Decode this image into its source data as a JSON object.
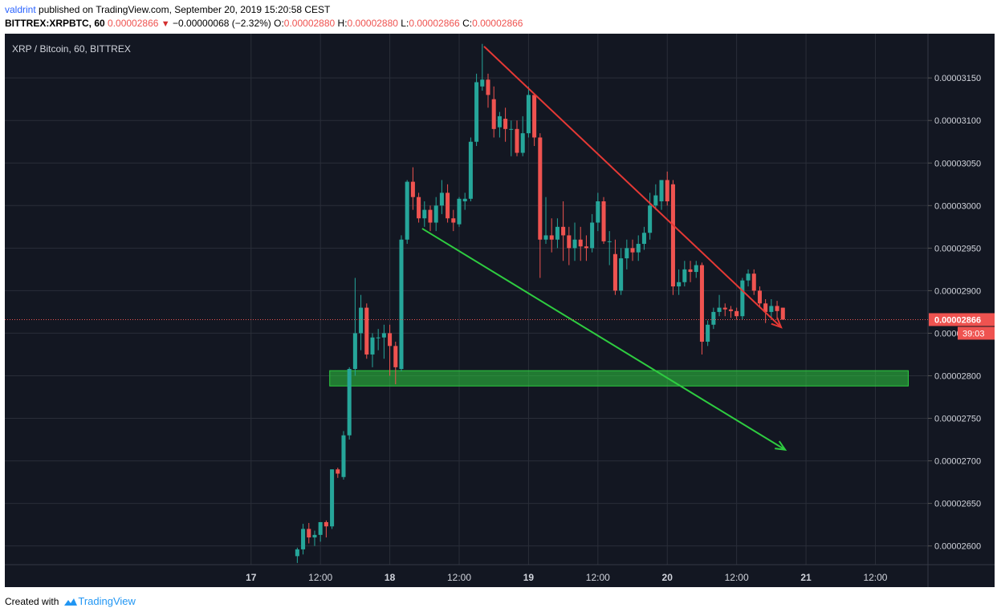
{
  "header": {
    "author": "valdrint",
    "published_text": "published on TradingView.com, September 20, 2019 15:20:58 CEST",
    "symbol": "BITTREX:XRPBTC, 60",
    "last_price": "0.00002866",
    "change": "−0.00000068 (−2.32%)",
    "o_label": "O:",
    "o_value": "0.00002880",
    "h_label": "H:",
    "h_value": "0.00002880",
    "l_label": "L:",
    "l_value": "0.00002866",
    "c_label": "C:",
    "c_value": "0.00002866"
  },
  "footer": {
    "created_with": "Created with",
    "logo_text": "TradingView"
  },
  "colors": {
    "up": "#26a69a",
    "down": "#ef5350",
    "background": "#131722",
    "grid": "#2a2e39",
    "text": "#d1d4dc",
    "resistance": "#e53935",
    "support": "#2ecc40"
  },
  "chart_data": {
    "type": "candlestick",
    "title": "XRP / Bitcoin, 60, BITTREX",
    "ylim": [
      2.578e-05,
      3.202e-05
    ],
    "xlim": [
      -42.6,
      117.1
    ],
    "x_unit": "hours since 2019-09-17 00:00",
    "yticks": [
      "0.00003150",
      "0.00003100",
      "0.00003050",
      "0.00003000",
      "0.00002950",
      "0.00002900",
      "0.00002850",
      "0.00002800",
      "0.00002750",
      "0.00002700",
      "0.00002650",
      "0.00002600"
    ],
    "xticks": [
      {
        "t": 0,
        "label": "17"
      },
      {
        "t": 12,
        "label": "12:00"
      },
      {
        "t": 24,
        "label": "18"
      },
      {
        "t": 36,
        "label": "12:00"
      },
      {
        "t": 48,
        "label": "19"
      },
      {
        "t": 60,
        "label": "12:00"
      },
      {
        "t": 72,
        "label": "20"
      },
      {
        "t": 84,
        "label": "12:00"
      },
      {
        "t": 96,
        "label": "21"
      },
      {
        "t": 108,
        "label": "12:00"
      }
    ],
    "candles": [
      {
        "t": 8,
        "o": 2.588e-05,
        "h": 2.598e-05,
        "l": 2.58e-05,
        "c": 2.596e-05
      },
      {
        "t": 9,
        "o": 2.596e-05,
        "h": 2.626e-05,
        "l": 2.59e-05,
        "c": 2.62e-05
      },
      {
        "t": 10,
        "o": 2.62e-05,
        "h": 2.627e-05,
        "l": 2.603e-05,
        "c": 2.61e-05
      },
      {
        "t": 11,
        "o": 2.61e-05,
        "h": 2.618e-05,
        "l": 2.6e-05,
        "c": 2.613e-05
      },
      {
        "t": 12,
        "o": 2.613e-05,
        "h": 2.627e-05,
        "l": 2.605e-05,
        "c": 2.628e-05
      },
      {
        "t": 13,
        "o": 2.628e-05,
        "h": 2.63e-05,
        "l": 2.61e-05,
        "c": 2.623e-05
      },
      {
        "t": 14,
        "o": 2.623e-05,
        "h": 2.69e-05,
        "l": 2.62e-05,
        "c": 2.69e-05
      },
      {
        "t": 15,
        "o": 2.69e-05,
        "h": 2.692e-05,
        "l": 2.68e-05,
        "c": 2.685e-05
      },
      {
        "t": 16,
        "o": 2.681e-05,
        "h": 2.735e-05,
        "l": 2.678e-05,
        "c": 2.73e-05
      },
      {
        "t": 17,
        "o": 2.73e-05,
        "h": 2.81e-05,
        "l": 2.725e-05,
        "c": 2.808e-05
      },
      {
        "t": 18,
        "o": 2.808e-05,
        "h": 2.915e-05,
        "l": 2.8e-05,
        "c": 2.85e-05
      },
      {
        "t": 19,
        "o": 2.85e-05,
        "h": 2.895e-05,
        "l": 2.83e-05,
        "c": 2.88e-05
      },
      {
        "t": 20,
        "o": 2.88e-05,
        "h": 2.885e-05,
        "l": 2.82e-05,
        "c": 2.825e-05
      },
      {
        "t": 21,
        "o": 2.825e-05,
        "h": 2.85e-05,
        "l": 2.81e-05,
        "c": 2.845e-05
      },
      {
        "t": 22,
        "o": 2.845e-05,
        "h": 2.855e-05,
        "l": 2.83e-05,
        "c": 2.845e-05
      },
      {
        "t": 23,
        "o": 2.845e-05,
        "h": 2.86e-05,
        "l": 2.82e-05,
        "c": 2.85e-05
      },
      {
        "t": 24,
        "o": 2.85e-05,
        "h": 2.86e-05,
        "l": 2.8e-05,
        "c": 2.835e-05
      },
      {
        "t": 25,
        "o": 2.835e-05,
        "h": 2.84e-05,
        "l": 2.79e-05,
        "c": 2.81e-05
      },
      {
        "t": 26,
        "o": 2.808e-05,
        "h": 2.965e-05,
        "l": 2.805e-05,
        "c": 2.96e-05
      },
      {
        "t": 27,
        "o": 2.96e-05,
        "h": 3.03e-05,
        "l": 2.955e-05,
        "c": 3.028e-05
      },
      {
        "t": 28,
        "o": 3.028e-05,
        "h": 3.045e-05,
        "l": 2.995e-05,
        "c": 3.01e-05
      },
      {
        "t": 29,
        "o": 3.01e-05,
        "h": 3.015e-05,
        "l": 2.98e-05,
        "c": 2.985e-05
      },
      {
        "t": 30,
        "o": 2.985e-05,
        "h": 3.005e-05,
        "l": 2.975e-05,
        "c": 2.995e-05
      },
      {
        "t": 31,
        "o": 2.995e-05,
        "h": 3e-05,
        "l": 2.97e-05,
        "c": 2.98e-05
      },
      {
        "t": 32,
        "o": 2.98e-05,
        "h": 3.01e-05,
        "l": 2.97e-05,
        "c": 3e-05
      },
      {
        "t": 33,
        "o": 3e-05,
        "h": 3.03e-05,
        "l": 2.99e-05,
        "c": 3.015e-05
      },
      {
        "t": 34,
        "o": 3.015e-05,
        "h": 3.025e-05,
        "l": 2.98e-05,
        "c": 2.985e-05
      },
      {
        "t": 35,
        "o": 2.985e-05,
        "h": 2.995e-05,
        "l": 2.97e-05,
        "c": 2.98e-05
      },
      {
        "t": 36,
        "o": 2.978e-05,
        "h": 3.01e-05,
        "l": 2.975e-05,
        "c": 3.008e-05
      },
      {
        "t": 37,
        "o": 3.005e-05,
        "h": 3.015e-05,
        "l": 2.995e-05,
        "c": 3.008e-05
      },
      {
        "t": 38,
        "o": 3.008e-05,
        "h": 3.08e-05,
        "l": 3.005e-05,
        "c": 3.075e-05
      },
      {
        "t": 39,
        "o": 3.075e-05,
        "h": 3.155e-05,
        "l": 3.07e-05,
        "c": 3.145e-05
      },
      {
        "t": 40,
        "o": 3.14e-05,
        "h": 3.19e-05,
        "l": 3.135e-05,
        "c": 3.148e-05
      },
      {
        "t": 41,
        "o": 3.148e-05,
        "h": 3.155e-05,
        "l": 3.115e-05,
        "c": 3.13e-05
      },
      {
        "t": 42,
        "o": 3.125e-05,
        "h": 3.14e-05,
        "l": 3.08e-05,
        "c": 3.09e-05
      },
      {
        "t": 43,
        "o": 3.092e-05,
        "h": 3.11e-05,
        "l": 3.08e-05,
        "c": 3.105e-05
      },
      {
        "t": 44,
        "o": 3.102e-05,
        "h": 3.115e-05,
        "l": 3.075e-05,
        "c": 3.09e-05
      },
      {
        "t": 45,
        "o": 3.09e-05,
        "h": 3.1e-05,
        "l": 3.058e-05,
        "c": 3.09e-05
      },
      {
        "t": 46,
        "o": 3.09e-05,
        "h": 3.1e-05,
        "l": 3.058e-05,
        "c": 3.062e-05
      },
      {
        "t": 47,
        "o": 3.062e-05,
        "h": 3.105e-05,
        "l": 3.058e-05,
        "c": 3.085e-05
      },
      {
        "t": 48,
        "o": 3.085e-05,
        "h": 3.14e-05,
        "l": 3.08e-05,
        "c": 3.13e-05
      },
      {
        "t": 49,
        "o": 3.13e-05,
        "h": 3.13e-05,
        "l": 3.07e-05,
        "c": 3.08e-05
      },
      {
        "t": 50,
        "o": 3.08e-05,
        "h": 3.085e-05,
        "l": 2.915e-05,
        "c": 2.96e-05
      },
      {
        "t": 51,
        "o": 2.96e-05,
        "h": 3.01e-05,
        "l": 2.955e-05,
        "c": 2.965e-05
      },
      {
        "t": 52,
        "o": 2.965e-05,
        "h": 2.985e-05,
        "l": 2.945e-05,
        "c": 2.96e-05
      },
      {
        "t": 53,
        "o": 2.96e-05,
        "h": 2.985e-05,
        "l": 2.95e-05,
        "c": 2.975e-05
      },
      {
        "t": 54,
        "o": 2.975e-05,
        "h": 3.005e-05,
        "l": 2.935e-05,
        "c": 2.965e-05
      },
      {
        "t": 55,
        "o": 2.965e-05,
        "h": 2.975e-05,
        "l": 2.93e-05,
        "c": 2.95e-05
      },
      {
        "t": 56,
        "o": 2.95e-05,
        "h": 2.98e-05,
        "l": 2.935e-05,
        "c": 2.96e-05
      },
      {
        "t": 57,
        "o": 2.96e-05,
        "h": 2.975e-05,
        "l": 2.935e-05,
        "c": 2.952e-05
      },
      {
        "t": 58,
        "o": 2.952e-05,
        "h": 2.965e-05,
        "l": 2.935e-05,
        "c": 2.95e-05
      },
      {
        "t": 59,
        "o": 2.95e-05,
        "h": 2.99e-05,
        "l": 2.945e-05,
        "c": 2.98e-05
      },
      {
        "t": 60,
        "o": 2.98e-05,
        "h": 3.015e-05,
        "l": 2.97e-05,
        "c": 3.005e-05
      },
      {
        "t": 61,
        "o": 3.005e-05,
        "h": 3.01e-05,
        "l": 2.955e-05,
        "c": 2.958e-05
      },
      {
        "t": 62,
        "o": 2.958e-05,
        "h": 2.97e-05,
        "l": 2.93e-05,
        "c": 2.958e-05
      },
      {
        "t": 63,
        "o": 2.943e-05,
        "h": 2.96e-05,
        "l": 2.895e-05,
        "c": 2.9e-05
      },
      {
        "t": 64,
        "o": 2.9e-05,
        "h": 2.95e-05,
        "l": 2.895e-05,
        "c": 2.938e-05
      },
      {
        "t": 65,
        "o": 2.938e-05,
        "h": 2.96e-05,
        "l": 2.925e-05,
        "c": 2.95e-05
      },
      {
        "t": 66,
        "o": 2.95e-05,
        "h": 2.96e-05,
        "l": 2.935e-05,
        "c": 2.945e-05
      },
      {
        "t": 67,
        "o": 2.945e-05,
        "h": 2.965e-05,
        "l": 2.935e-05,
        "c": 2.955e-05
      },
      {
        "t": 68,
        "o": 2.955e-05,
        "h": 2.975e-05,
        "l": 2.948e-05,
        "c": 2.968e-05
      },
      {
        "t": 69,
        "o": 2.968e-05,
        "h": 3.015e-05,
        "l": 2.96e-05,
        "c": 3e-05
      },
      {
        "t": 70,
        "o": 3e-05,
        "h": 3.025e-05,
        "l": 2.995e-05,
        "c": 3.012e-05
      },
      {
        "t": 71,
        "o": 3.005e-05,
        "h": 3.03e-05,
        "l": 2.995e-05,
        "c": 3.03e-05
      },
      {
        "t": 72,
        "o": 3.03e-05,
        "h": 3.04e-05,
        "l": 3e-05,
        "c": 3.005e-05
      },
      {
        "t": 73,
        "o": 3.025e-05,
        "h": 3.03e-05,
        "l": 2.895e-05,
        "c": 2.905e-05
      },
      {
        "t": 74,
        "o": 2.905e-05,
        "h": 2.925e-05,
        "l": 2.895e-05,
        "c": 2.91e-05
      },
      {
        "t": 75,
        "o": 2.91e-05,
        "h": 2.935e-05,
        "l": 2.905e-05,
        "c": 2.925e-05
      },
      {
        "t": 76,
        "o": 2.925e-05,
        "h": 2.935e-05,
        "l": 2.91e-05,
        "c": 2.922e-05
      },
      {
        "t": 77,
        "o": 2.922e-05,
        "h": 2.935e-05,
        "l": 2.915e-05,
        "c": 2.93e-05
      },
      {
        "t": 78,
        "o": 2.93e-05,
        "h": 2.933e-05,
        "l": 2.825e-05,
        "c": 2.84e-05
      },
      {
        "t": 79,
        "o": 2.84e-05,
        "h": 2.865e-05,
        "l": 2.835e-05,
        "c": 2.86e-05
      },
      {
        "t": 80,
        "o": 2.86e-05,
        "h": 2.88e-05,
        "l": 2.855e-05,
        "c": 2.875e-05
      },
      {
        "t": 81,
        "o": 2.875e-05,
        "h": 2.895e-05,
        "l": 2.87e-05,
        "c": 2.88e-05
      },
      {
        "t": 82,
        "o": 2.88e-05,
        "h": 2.885e-05,
        "l": 2.87e-05,
        "c": 2.878e-05
      },
      {
        "t": 83,
        "o": 2.878e-05,
        "h": 2.882e-05,
        "l": 2.868e-05,
        "c": 2.876e-05
      },
      {
        "t": 84,
        "o": 2.876e-05,
        "h": 2.88e-05,
        "l": 2.866e-05,
        "c": 2.87e-05
      },
      {
        "t": 85,
        "o": 2.87e-05,
        "h": 2.915e-05,
        "l": 2.866e-05,
        "c": 2.912e-05
      },
      {
        "t": 86,
        "o": 2.912e-05,
        "h": 2.925e-05,
        "l": 2.905e-05,
        "c": 2.92e-05
      },
      {
        "t": 87,
        "o": 2.92e-05,
        "h": 2.925e-05,
        "l": 2.895e-05,
        "c": 2.9e-05
      },
      {
        "t": 88,
        "o": 2.9e-05,
        "h": 2.905e-05,
        "l": 2.88e-05,
        "c": 2.885e-05
      },
      {
        "t": 89,
        "o": 2.885e-05,
        "h": 2.89e-05,
        "l": 2.862e-05,
        "c": 2.875e-05
      },
      {
        "t": 90,
        "o": 2.875e-05,
        "h": 2.89e-05,
        "l": 2.868e-05,
        "c": 2.882e-05
      },
      {
        "t": 91,
        "o": 2.882e-05,
        "h": 2.888e-05,
        "l": 2.866e-05,
        "c": 2.876e-05
      },
      {
        "t": 92,
        "o": 2.88e-05,
        "h": 2.88e-05,
        "l": 2.866e-05,
        "c": 2.866e-05
      }
    ],
    "trendlines": [
      {
        "name": "resistance",
        "color": "#e53935",
        "from": {
          "t": 40.3,
          "y": 3.187e-05
        },
        "to": {
          "t": 91.7,
          "y": 2.857e-05
        },
        "arrow": "end"
      },
      {
        "name": "support",
        "color": "#2ecc40",
        "from": {
          "t": 29.6,
          "y": 2.973e-05
        },
        "to": {
          "t": 92.4,
          "y": 2.713e-05
        },
        "arrow": "end"
      }
    ],
    "zone": {
      "t_from": 13.6,
      "t_to": 113.7,
      "y_from": 2.788e-05,
      "y_to": 2.806e-05,
      "color": "#2ecc40"
    },
    "last_price_line": {
      "value": 2.866e-05,
      "label": "0.00002866",
      "countdown": "39:03"
    }
  }
}
